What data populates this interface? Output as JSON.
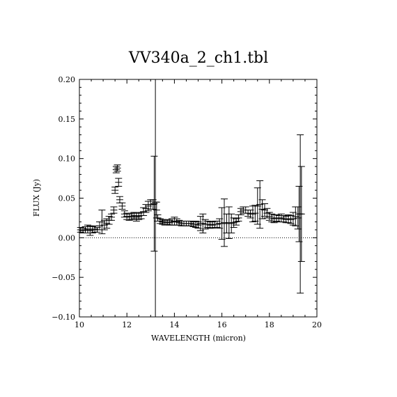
{
  "chart_data": {
    "type": "scatter",
    "title": "VV340a_2_ch1.tbl",
    "xlabel": "WAVELENGTH (micron)",
    "ylabel": "FLUX (Jy)",
    "xlim": [
      10,
      20
    ],
    "ylim": [
      -0.1,
      0.2
    ],
    "xticks": [
      "10",
      "12",
      "14",
      "16",
      "18",
      "20"
    ],
    "yticks": [
      "−0.10",
      "−0.05",
      "0.00",
      "0.05",
      "0.10",
      "0.15",
      "0.20"
    ],
    "zero_line": true,
    "series": [
      {
        "style": "errorbar",
        "points": [
          [
            10.05,
            0.01,
            0.003
          ],
          [
            10.15,
            0.009,
            0.003
          ],
          [
            10.25,
            0.01,
            0.004
          ],
          [
            10.35,
            0.011,
            0.005
          ],
          [
            10.45,
            0.009,
            0.006
          ],
          [
            10.55,
            0.01,
            0.004
          ],
          [
            10.65,
            0.011,
            0.004
          ],
          [
            10.75,
            0.01,
            0.003
          ],
          [
            10.85,
            0.015,
            0.005
          ],
          [
            10.95,
            0.02,
            0.015
          ],
          [
            11.05,
            0.016,
            0.006
          ],
          [
            11.15,
            0.018,
            0.006
          ],
          [
            11.25,
            0.022,
            0.005
          ],
          [
            11.35,
            0.026,
            0.004
          ],
          [
            11.45,
            0.035,
            0.004
          ],
          [
            11.5,
            0.06,
            0.004
          ],
          [
            11.55,
            0.086,
            0.004
          ],
          [
            11.6,
            0.088,
            0.004
          ],
          [
            11.65,
            0.07,
            0.005
          ],
          [
            11.7,
            0.048,
            0.004
          ],
          [
            11.8,
            0.04,
            0.004
          ],
          [
            11.9,
            0.03,
            0.004
          ],
          [
            12.0,
            0.027,
            0.004
          ],
          [
            12.1,
            0.026,
            0.004
          ],
          [
            12.2,
            0.027,
            0.004
          ],
          [
            12.3,
            0.028,
            0.004
          ],
          [
            12.4,
            0.026,
            0.005
          ],
          [
            12.5,
            0.027,
            0.004
          ],
          [
            12.6,
            0.028,
            0.004
          ],
          [
            12.7,
            0.033,
            0.005
          ],
          [
            12.8,
            0.037,
            0.005
          ],
          [
            12.9,
            0.04,
            0.006
          ],
          [
            13.0,
            0.042,
            0.006
          ],
          [
            13.1,
            0.042,
            0.006
          ],
          [
            13.15,
            0.043,
            0.06
          ],
          [
            13.2,
            0.045,
            0.158
          ],
          [
            13.25,
            0.035,
            0.01
          ],
          [
            13.3,
            0.025,
            0.004
          ],
          [
            13.4,
            0.021,
            0.003
          ],
          [
            13.5,
            0.02,
            0.003
          ],
          [
            13.6,
            0.019,
            0.003
          ],
          [
            13.7,
            0.02,
            0.003
          ],
          [
            13.8,
            0.019,
            0.003
          ],
          [
            13.9,
            0.02,
            0.004
          ],
          [
            14.0,
            0.021,
            0.005
          ],
          [
            14.1,
            0.02,
            0.004
          ],
          [
            14.2,
            0.019,
            0.003
          ],
          [
            14.3,
            0.018,
            0.003
          ],
          [
            14.4,
            0.018,
            0.003
          ],
          [
            14.5,
            0.018,
            0.003
          ],
          [
            14.6,
            0.018,
            0.003
          ],
          [
            14.7,
            0.018,
            0.003
          ],
          [
            14.8,
            0.017,
            0.003
          ],
          [
            14.9,
            0.017,
            0.004
          ],
          [
            15.0,
            0.016,
            0.004
          ],
          [
            15.1,
            0.018,
            0.009
          ],
          [
            15.2,
            0.018,
            0.012
          ],
          [
            15.3,
            0.017,
            0.006
          ],
          [
            15.4,
            0.017,
            0.004
          ],
          [
            15.5,
            0.016,
            0.004
          ],
          [
            15.6,
            0.016,
            0.004
          ],
          [
            15.7,
            0.017,
            0.004
          ],
          [
            15.8,
            0.017,
            0.004
          ],
          [
            15.9,
            0.018,
            0.006
          ],
          [
            16.0,
            0.018,
            0.02
          ],
          [
            16.1,
            0.019,
            0.03
          ],
          [
            16.2,
            0.018,
            0.012
          ],
          [
            16.3,
            0.019,
            0.02
          ],
          [
            16.4,
            0.018,
            0.012
          ],
          [
            16.5,
            0.019,
            0.006
          ],
          [
            16.6,
            0.02,
            0.004
          ],
          [
            16.7,
            0.025,
            0.004
          ],
          [
            16.8,
            0.033,
            0.004
          ],
          [
            16.9,
            0.035,
            0.004
          ],
          [
            17.0,
            0.035,
            0.004
          ],
          [
            17.1,
            0.031,
            0.004
          ],
          [
            17.2,
            0.03,
            0.005
          ],
          [
            17.3,
            0.03,
            0.01
          ],
          [
            17.4,
            0.031,
            0.01
          ],
          [
            17.5,
            0.04,
            0.023
          ],
          [
            17.6,
            0.042,
            0.03
          ],
          [
            17.7,
            0.036,
            0.012
          ],
          [
            17.8,
            0.035,
            0.008
          ],
          [
            17.9,
            0.031,
            0.006
          ],
          [
            18.0,
            0.027,
            0.005
          ],
          [
            18.1,
            0.025,
            0.005
          ],
          [
            18.2,
            0.024,
            0.005
          ],
          [
            18.3,
            0.025,
            0.004
          ],
          [
            18.4,
            0.024,
            0.004
          ],
          [
            18.5,
            0.025,
            0.005
          ],
          [
            18.6,
            0.024,
            0.004
          ],
          [
            18.7,
            0.023,
            0.004
          ],
          [
            18.8,
            0.024,
            0.005
          ],
          [
            18.9,
            0.023,
            0.005
          ],
          [
            19.0,
            0.024,
            0.008
          ],
          [
            19.1,
            0.027,
            0.012
          ],
          [
            19.2,
            0.025,
            0.014
          ],
          [
            19.25,
            0.03,
            0.035
          ],
          [
            19.3,
            0.03,
            0.1
          ],
          [
            19.35,
            0.03,
            0.06
          ]
        ]
      }
    ]
  }
}
